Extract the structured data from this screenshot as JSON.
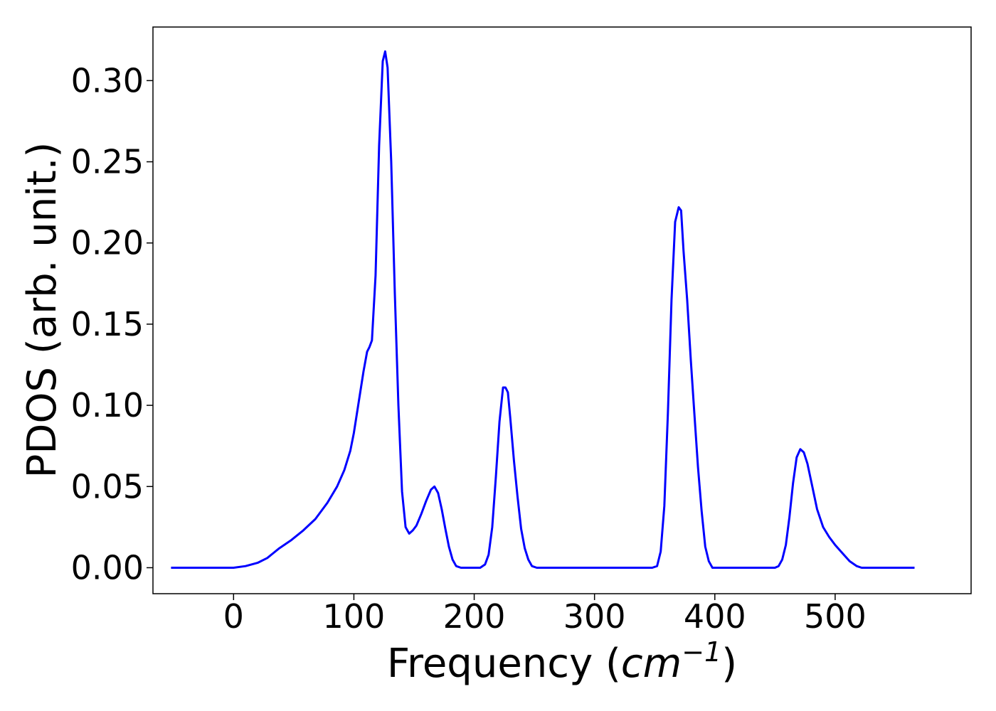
{
  "chart_data": {
    "type": "line",
    "title": "",
    "xlabel": "Frequency (cm⁻¹)",
    "xlabel_parts": {
      "prefix": "Frequency (",
      "unit_base": "cm",
      "unit_exp": "−1",
      "suffix": ")"
    },
    "ylabel": "PDOS (arb. unit.)",
    "xlim": [
      -67,
      613
    ],
    "ylim": [
      -0.016,
      0.333
    ],
    "x_ticks": [
      0,
      100,
      200,
      300,
      400,
      500
    ],
    "x_tick_labels": [
      "0",
      "100",
      "200",
      "300",
      "400",
      "500"
    ],
    "y_ticks": [
      0.0,
      0.05,
      0.1,
      0.15,
      0.2,
      0.25,
      0.3
    ],
    "y_tick_labels": [
      "0.00",
      "0.05",
      "0.10",
      "0.15",
      "0.20",
      "0.25",
      "0.30"
    ],
    "grid": false,
    "legend": "none",
    "line_color": "#0000ff",
    "series": [
      {
        "x": [
          -52,
          -20,
          0,
          10,
          20,
          28,
          38,
          48,
          58,
          68,
          78,
          86,
          92,
          97,
          100,
          104,
          108,
          111,
          113,
          115,
          118,
          121,
          124,
          126,
          128,
          131,
          134,
          137,
          140,
          143,
          146,
          149,
          152,
          156,
          160,
          164,
          167,
          170,
          173,
          176,
          179,
          182,
          185,
          189,
          193,
          199,
          205,
          209,
          212,
          215,
          218,
          221,
          224,
          226,
          228,
          230,
          233,
          236,
          239,
          242,
          245,
          248,
          252,
          256,
          262,
          280,
          320,
          348,
          352,
          355,
          358,
          361,
          364,
          367,
          370,
          372,
          374,
          377,
          380,
          383,
          386,
          389,
          392,
          395,
          398,
          405,
          420,
          440,
          450,
          453,
          456,
          459,
          462,
          465,
          468,
          471,
          474,
          477,
          481,
          485,
          490,
          495,
          500,
          506,
          512,
          518,
          522,
          527,
          540,
          566
        ],
        "y": [
          0.0,
          0.0,
          0.0,
          0.001,
          0.003,
          0.006,
          0.012,
          0.017,
          0.023,
          0.03,
          0.04,
          0.05,
          0.06,
          0.072,
          0.083,
          0.102,
          0.121,
          0.133,
          0.136,
          0.14,
          0.18,
          0.26,
          0.312,
          0.318,
          0.308,
          0.25,
          0.17,
          0.1,
          0.047,
          0.025,
          0.021,
          0.023,
          0.026,
          0.033,
          0.041,
          0.048,
          0.05,
          0.046,
          0.036,
          0.024,
          0.013,
          0.005,
          0.001,
          0.0,
          0.0,
          0.0,
          0.0,
          0.002,
          0.008,
          0.025,
          0.056,
          0.09,
          0.111,
          0.111,
          0.108,
          0.092,
          0.066,
          0.044,
          0.024,
          0.012,
          0.005,
          0.001,
          0.0,
          0.0,
          0.0,
          0.0,
          0.0,
          0.0,
          0.001,
          0.01,
          0.038,
          0.095,
          0.165,
          0.213,
          0.222,
          0.22,
          0.195,
          0.165,
          0.128,
          0.095,
          0.062,
          0.035,
          0.013,
          0.004,
          0.0,
          0.0,
          0.0,
          0.0,
          0.0,
          0.001,
          0.005,
          0.014,
          0.031,
          0.052,
          0.068,
          0.073,
          0.071,
          0.064,
          0.05,
          0.036,
          0.025,
          0.019,
          0.014,
          0.009,
          0.004,
          0.001,
          0.0,
          0.0,
          0.0,
          0.0
        ]
      }
    ]
  }
}
